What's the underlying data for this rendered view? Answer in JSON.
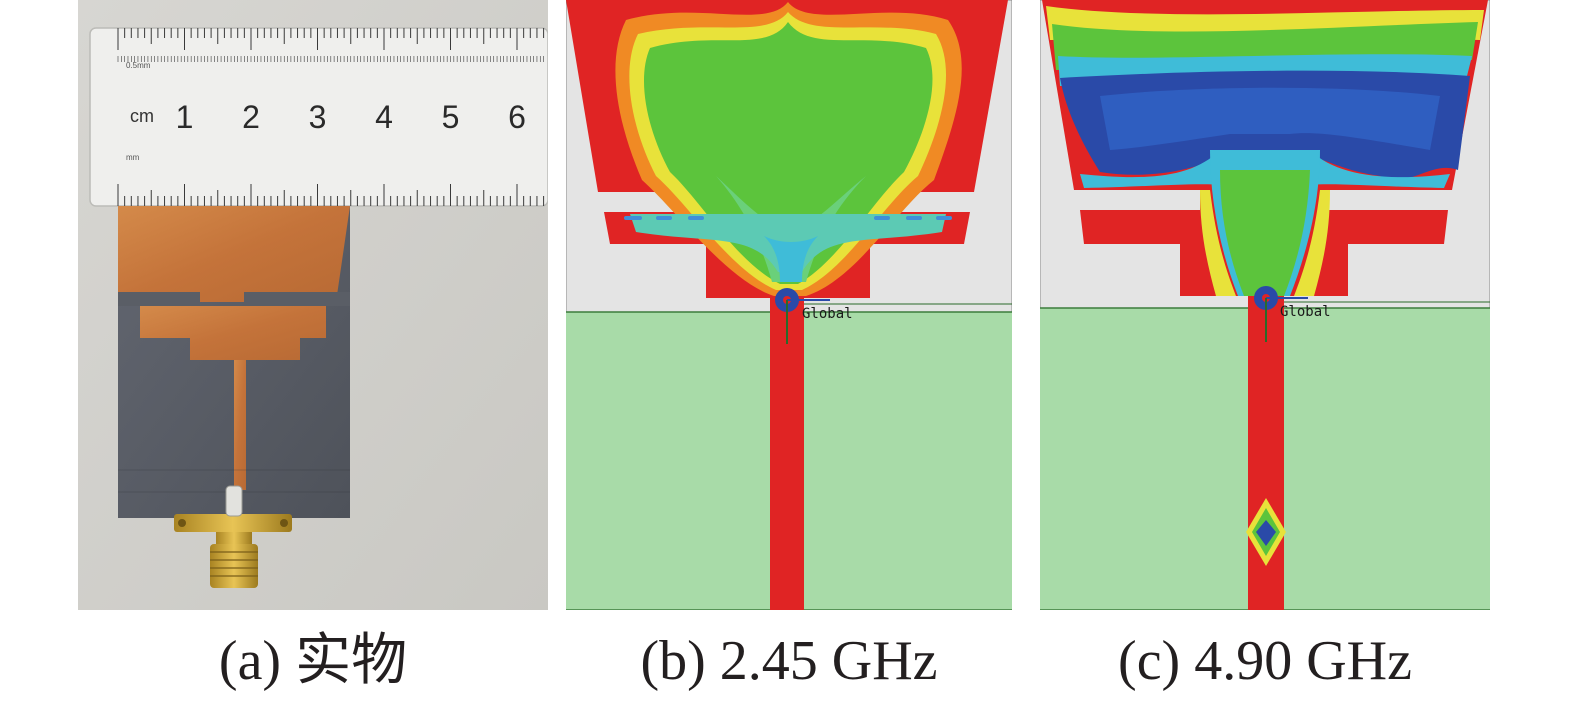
{
  "panels": {
    "a": {
      "caption": "(a) 实物"
    },
    "b": {
      "caption": "(b) 2.45 GHz",
      "axis_label": "Global"
    },
    "c": {
      "caption": "(c) 4.90 GHz",
      "axis_label": "Global"
    }
  },
  "ruler": {
    "unit": "cm",
    "numbers": [
      "1",
      "2",
      "3",
      "4",
      "5",
      "6"
    ],
    "top_mark": "0.5mm",
    "bottom_mark": "mm"
  },
  "colors": {
    "field_high": "#e02424",
    "field_mid_orange": "#f08a24",
    "field_mid_yellow": "#e8e23a",
    "field_mid_green": "#5cc43c",
    "field_low_cyan": "#3fbcd8",
    "field_lowest_blue": "#2a4aa8",
    "substrate": "#a8dba8",
    "background_grey": "#e4e4e4",
    "copper": "#c9793d",
    "board": "#5a5e66"
  }
}
